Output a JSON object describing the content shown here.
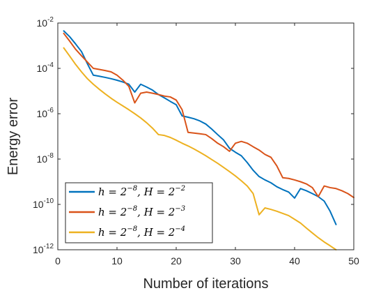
{
  "chart_data": {
    "type": "line",
    "xlabel": "Number of iterations",
    "ylabel": "Energy error",
    "xlim": [
      0,
      50
    ],
    "ylim": [
      1e-12,
      0.01
    ],
    "yscale": "log",
    "xticks": [
      0,
      10,
      20,
      30,
      40,
      50
    ],
    "yticks": [
      {
        "value": 0.01,
        "mant": "10",
        "exp": "-2"
      },
      {
        "value": 0.0001,
        "mant": "10",
        "exp": "-4"
      },
      {
        "value": 1e-06,
        "mant": "10",
        "exp": "-6"
      },
      {
        "value": 1e-08,
        "mant": "10",
        "exp": "-8"
      },
      {
        "value": 1e-10,
        "mant": "10",
        "exp": "-10"
      },
      {
        "value": 1e-12,
        "mant": "10",
        "exp": "-12"
      }
    ],
    "grid": false,
    "legend_position": "bottom-left",
    "series": [
      {
        "name": "h = 2^{-8}, H = 2^{-2}",
        "legend": {
          "base": "h = 2",
          "exp1": "−8",
          "mid": ", H = 2",
          "exp2": "−2"
        },
        "color": "#0072BD",
        "x": [
          1,
          2,
          3,
          4,
          5,
          6,
          7,
          8,
          9,
          10,
          11,
          12,
          13,
          14,
          15,
          16,
          17,
          18,
          19,
          20,
          21,
          22,
          23,
          24,
          25,
          26,
          27,
          28,
          29,
          30,
          31,
          32,
          33,
          34,
          35,
          36,
          37,
          38,
          39,
          40,
          41,
          42,
          43,
          44,
          45,
          46,
          47
        ],
        "y": [
          0.0045,
          0.0025,
          0.0012,
          0.00055,
          0.00016,
          5e-05,
          4.5e-05,
          4e-05,
          3.5e-05,
          3e-05,
          2.5e-05,
          2e-05,
          9e-06,
          2e-05,
          1.5e-05,
          1.1e-05,
          7e-06,
          5e-06,
          3.5e-06,
          2.5e-06,
          8e-07,
          7e-07,
          6e-07,
          4.8e-07,
          3.5e-07,
          2.1e-07,
          1.2e-07,
          7e-08,
          3e-08,
          2e-08,
          1.4e-08,
          7e-09,
          3.2e-09,
          1.7e-09,
          1.2e-09,
          9e-10,
          6e-10,
          4.5e-10,
          3.5e-10,
          1.9e-10,
          5e-10,
          4e-10,
          3e-10,
          2.2e-10,
          1.4e-10,
          5e-11,
          1.3e-11
        ]
      },
      {
        "name": "h = 2^{-8}, H = 2^{-3}",
        "legend": {
          "base": "h = 2",
          "exp1": "−8",
          "mid": ", H = 2",
          "exp2": "−3"
        },
        "color": "#D95319",
        "x": [
          1,
          2,
          3,
          4,
          5,
          6,
          7,
          8,
          9,
          10,
          11,
          12,
          13,
          14,
          15,
          16,
          17,
          18,
          19,
          20,
          21,
          22,
          23,
          24,
          25,
          26,
          27,
          28,
          29,
          30,
          31,
          32,
          33,
          34,
          35,
          36,
          37,
          38,
          39,
          40,
          41,
          42,
          43,
          44,
          45,
          46,
          47,
          48,
          49,
          50
        ],
        "y": [
          0.0035,
          0.0016,
          0.0007,
          0.00036,
          0.00019,
          0.0001,
          9e-05,
          8e-05,
          7e-05,
          5e-05,
          3e-05,
          1.6e-05,
          3e-06,
          8e-06,
          9e-06,
          8e-06,
          7e-06,
          6e-06,
          5.5e-06,
          4e-06,
          1.5e-06,
          1.5e-07,
          1.4e-07,
          1.3e-07,
          1.2e-07,
          8e-08,
          5e-08,
          3.5e-08,
          2.2e-08,
          5e-08,
          6e-08,
          5e-08,
          3.5e-08,
          2.5e-08,
          1.6e-08,
          1.2e-08,
          5e-09,
          1.5e-09,
          1.4e-09,
          1.2e-09,
          1e-09,
          8e-10,
          5.5e-10,
          2.2e-10,
          6.5e-10,
          5.5e-10,
          5e-10,
          4e-10,
          3e-10,
          2e-10
        ]
      },
      {
        "name": "h = 2^{-8}, H = 2^{-4}",
        "legend": {
          "base": "h = 2",
          "exp1": "−8",
          "mid": ", H = 2",
          "exp2": "−4"
        },
        "color": "#EDB120",
        "x": [
          1,
          2,
          3,
          4,
          5,
          6,
          7,
          8,
          9,
          10,
          11,
          12,
          13,
          14,
          15,
          16,
          17,
          18,
          19,
          20,
          21,
          22,
          23,
          24,
          25,
          26,
          27,
          28,
          29,
          30,
          31,
          32,
          33,
          34,
          35,
          36,
          37,
          38,
          39,
          40,
          41,
          42,
          43,
          44,
          45,
          46,
          47
        ],
        "y": [
          0.0008,
          0.00035,
          0.00015,
          7e-05,
          3.5e-05,
          2e-05,
          1.2e-05,
          7.5e-06,
          4.8e-06,
          3.2e-06,
          2.2e-06,
          1.5e-06,
          1e-06,
          6.5e-07,
          4e-07,
          2.3e-07,
          1.2e-07,
          1.1e-07,
          9e-08,
          6.8e-08,
          5e-08,
          3.8e-08,
          2.8e-08,
          2e-08,
          1.4e-08,
          9.5e-09,
          6.5e-09,
          4.3e-09,
          2.8e-09,
          1.8e-09,
          1.1e-09,
          6.5e-10,
          3e-10,
          3.5e-11,
          7e-11,
          6e-11,
          5e-11,
          4e-11,
          3.2e-11,
          2.2e-11,
          1.5e-11,
          9e-12,
          5.5e-12,
          3.4e-12,
          2.2e-12,
          1.5e-12,
          1e-12
        ]
      }
    ]
  }
}
